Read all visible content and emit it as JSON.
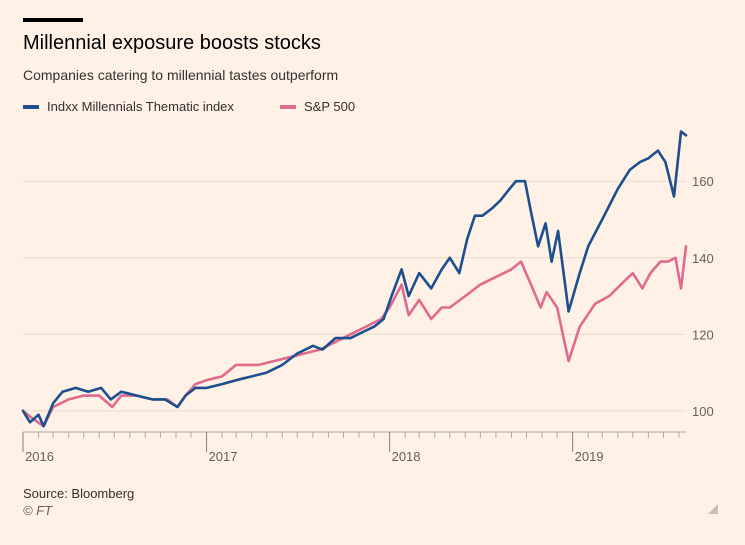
{
  "header": {
    "title": "Millennial exposure boosts stocks",
    "subtitle": "Companies catering to millennial tastes outperform"
  },
  "footer": {
    "source": "Source: Bloomberg",
    "copyright": "© FT"
  },
  "colors": {
    "background": "#fff1e5",
    "millennials": "#1c4f8e",
    "sp500": "#e16a8f",
    "grid": "#e8dccf",
    "tick_label": "#66605c"
  },
  "chart_data": {
    "type": "line",
    "title": "Millennial exposure boosts stocks",
    "subtitle": "Companies catering to millennial tastes outperform",
    "x_range": [
      "2016-01-01",
      "2019-08-15"
    ],
    "y_range": [
      95,
      176
    ],
    "y_ticks": [
      100,
      120,
      140,
      160
    ],
    "x_tick_labels": [
      {
        "label": "2016",
        "date": "2016-01-01"
      },
      {
        "label": "2017",
        "date": "2017-01-01"
      },
      {
        "label": "2018",
        "date": "2018-01-01"
      },
      {
        "label": "2019",
        "date": "2019-01-01"
      }
    ],
    "grid": "horizontal",
    "legend_position": "top-left",
    "series": [
      {
        "name": "Indxx Millennials Thematic index",
        "color": "#1c4f8e",
        "points": [
          [
            "2016-01-01",
            100
          ],
          [
            "2016-01-15",
            97
          ],
          [
            "2016-02-01",
            99
          ],
          [
            "2016-02-11",
            96
          ],
          [
            "2016-03-01",
            102
          ],
          [
            "2016-03-20",
            105
          ],
          [
            "2016-04-15",
            106
          ],
          [
            "2016-05-10",
            105
          ],
          [
            "2016-06-05",
            106
          ],
          [
            "2016-06-24",
            103
          ],
          [
            "2016-07-15",
            105
          ],
          [
            "2016-08-15",
            104
          ],
          [
            "2016-09-15",
            103
          ],
          [
            "2016-10-10",
            103
          ],
          [
            "2016-11-04",
            101
          ],
          [
            "2016-11-20",
            104
          ],
          [
            "2016-12-10",
            106
          ],
          [
            "2017-01-01",
            106
          ],
          [
            "2017-02-01",
            107
          ],
          [
            "2017-03-01",
            108
          ],
          [
            "2017-04-01",
            109
          ],
          [
            "2017-05-01",
            110
          ],
          [
            "2017-06-01",
            112
          ],
          [
            "2017-07-01",
            115
          ],
          [
            "2017-08-01",
            117
          ],
          [
            "2017-08-20",
            116
          ],
          [
            "2017-09-15",
            119
          ],
          [
            "2017-10-15",
            119
          ],
          [
            "2017-11-15",
            121
          ],
          [
            "2017-12-01",
            122
          ],
          [
            "2017-12-20",
            124
          ],
          [
            "2018-01-05",
            130
          ],
          [
            "2018-01-25",
            137
          ],
          [
            "2018-02-08",
            130
          ],
          [
            "2018-03-01",
            136
          ],
          [
            "2018-03-25",
            132
          ],
          [
            "2018-04-15",
            137
          ],
          [
            "2018-05-01",
            140
          ],
          [
            "2018-05-20",
            136
          ],
          [
            "2018-06-05",
            145
          ],
          [
            "2018-06-20",
            151
          ],
          [
            "2018-07-05",
            151
          ],
          [
            "2018-07-25",
            153
          ],
          [
            "2018-08-10",
            155
          ],
          [
            "2018-08-28",
            158
          ],
          [
            "2018-09-10",
            160
          ],
          [
            "2018-09-28",
            160
          ],
          [
            "2018-10-10",
            152
          ],
          [
            "2018-10-24",
            143
          ],
          [
            "2018-11-08",
            149
          ],
          [
            "2018-11-20",
            139
          ],
          [
            "2018-12-03",
            147
          ],
          [
            "2018-12-24",
            126
          ],
          [
            "2019-01-15",
            136
          ],
          [
            "2019-02-01",
            143
          ],
          [
            "2019-03-01",
            150
          ],
          [
            "2019-04-01",
            158
          ],
          [
            "2019-04-25",
            163
          ],
          [
            "2019-05-15",
            165
          ],
          [
            "2019-06-01",
            166
          ],
          [
            "2019-06-20",
            168
          ],
          [
            "2019-07-05",
            165
          ],
          [
            "2019-07-22",
            156
          ],
          [
            "2019-08-05",
            173
          ],
          [
            "2019-08-15",
            172
          ]
        ]
      },
      {
        "name": "S&P 500",
        "color": "#e16a8f",
        "points": [
          [
            "2016-01-01",
            100
          ],
          [
            "2016-01-20",
            98
          ],
          [
            "2016-02-11",
            96
          ],
          [
            "2016-03-01",
            101
          ],
          [
            "2016-04-01",
            103
          ],
          [
            "2016-05-01",
            104
          ],
          [
            "2016-06-01",
            104
          ],
          [
            "2016-06-27",
            101
          ],
          [
            "2016-07-15",
            104
          ],
          [
            "2016-08-15",
            104
          ],
          [
            "2016-09-15",
            103
          ],
          [
            "2016-10-15",
            103
          ],
          [
            "2016-11-04",
            101
          ],
          [
            "2016-11-20",
            104
          ],
          [
            "2016-12-10",
            107
          ],
          [
            "2017-01-01",
            108
          ],
          [
            "2017-02-01",
            109
          ],
          [
            "2017-03-01",
            112
          ],
          [
            "2017-04-15",
            112
          ],
          [
            "2017-05-15",
            113
          ],
          [
            "2017-06-15",
            114
          ],
          [
            "2017-07-15",
            115
          ],
          [
            "2017-08-15",
            116
          ],
          [
            "2017-09-15",
            118
          ],
          [
            "2017-10-15",
            120
          ],
          [
            "2017-11-15",
            122
          ],
          [
            "2017-12-15",
            124
          ],
          [
            "2018-01-01",
            127
          ],
          [
            "2018-01-25",
            133
          ],
          [
            "2018-02-08",
            125
          ],
          [
            "2018-03-01",
            129
          ],
          [
            "2018-03-25",
            124
          ],
          [
            "2018-04-15",
            127
          ],
          [
            "2018-05-01",
            127
          ],
          [
            "2018-06-01",
            130
          ],
          [
            "2018-07-01",
            133
          ],
          [
            "2018-08-01",
            135
          ],
          [
            "2018-09-01",
            137
          ],
          [
            "2018-09-20",
            139
          ],
          [
            "2018-10-10",
            133
          ],
          [
            "2018-10-29",
            127
          ],
          [
            "2018-11-10",
            131
          ],
          [
            "2018-12-01",
            127
          ],
          [
            "2018-12-24",
            113
          ],
          [
            "2019-01-15",
            122
          ],
          [
            "2019-02-15",
            128
          ],
          [
            "2019-03-15",
            130
          ],
          [
            "2019-04-15",
            134
          ],
          [
            "2019-05-01",
            136
          ],
          [
            "2019-05-20",
            132
          ],
          [
            "2019-06-05",
            136
          ],
          [
            "2019-06-25",
            139
          ],
          [
            "2019-07-10",
            139
          ],
          [
            "2019-07-25",
            140
          ],
          [
            "2019-08-05",
            132
          ],
          [
            "2019-08-15",
            143
          ]
        ]
      }
    ]
  }
}
